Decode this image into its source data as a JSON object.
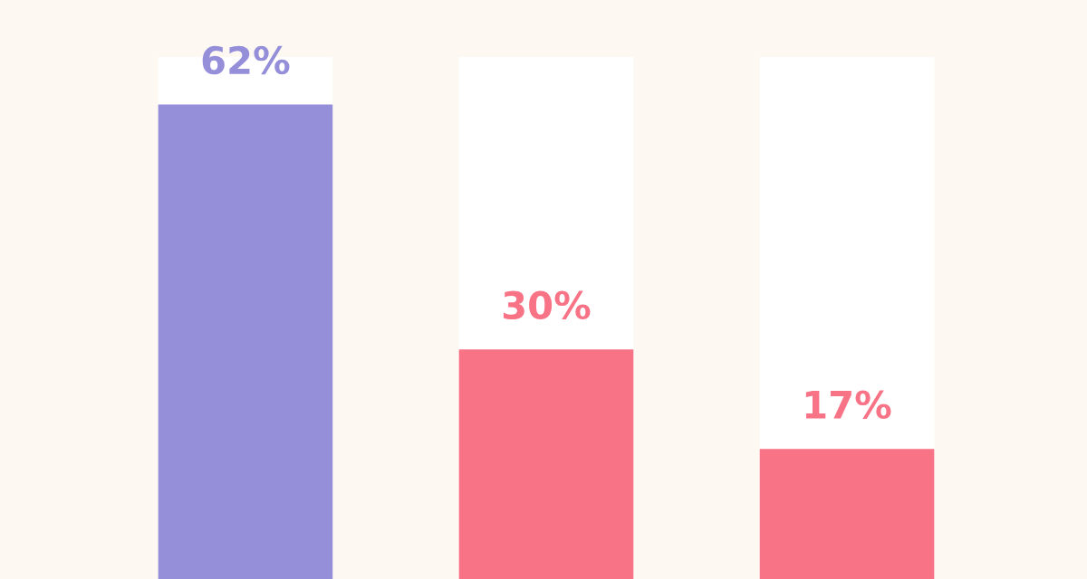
{
  "chart_data": {
    "type": "bar",
    "categories": [
      null,
      null,
      null
    ],
    "values": [
      62,
      30,
      17
    ],
    "value_labels": [
      "62%",
      "30%",
      "17%"
    ],
    "colors": [
      "#958fda",
      "#f97386",
      "#f97386"
    ],
    "grid": false,
    "legend": false
  }
}
